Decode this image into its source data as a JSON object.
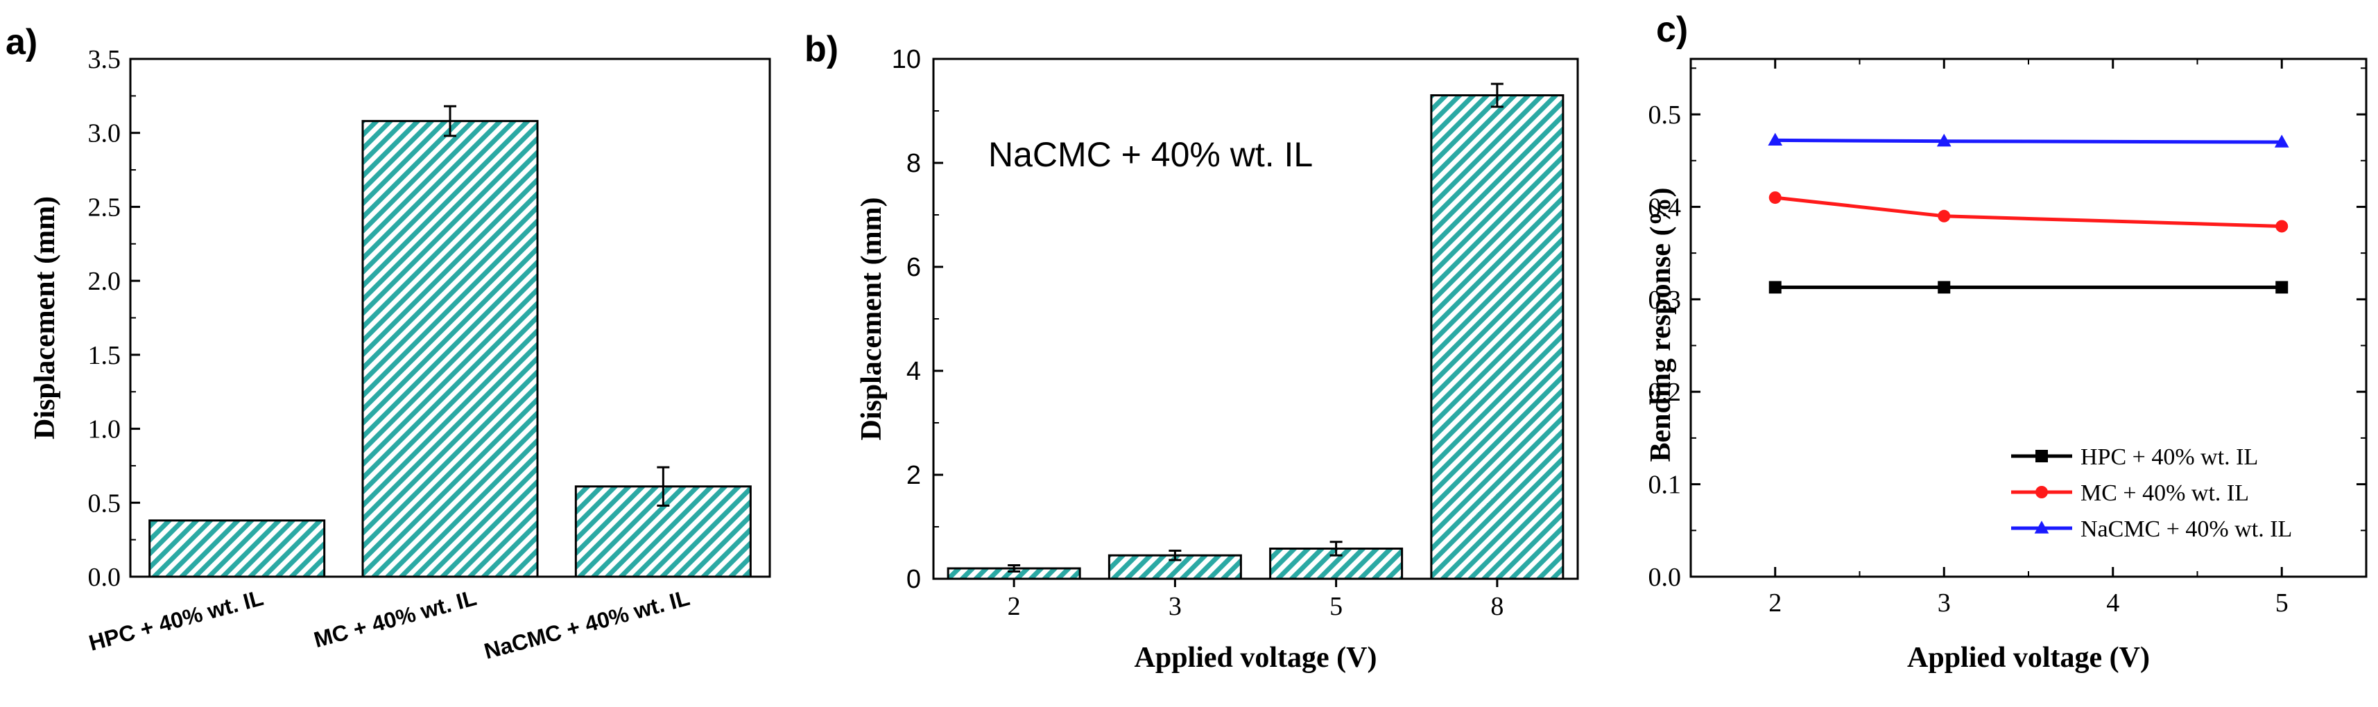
{
  "chart_data": [
    {
      "panel": "a)",
      "type": "bar",
      "categories": [
        "HPC + 40% wt. IL",
        "MC + 40% wt. IL",
        "NaCMC + 40% wt. IL"
      ],
      "values": [
        0.38,
        3.08,
        0.61
      ],
      "errors": [
        0.0,
        0.1,
        0.13
      ],
      "ylabel": "Displacement (mm)",
      "ylim": [
        0,
        3.5
      ],
      "yticks": [
        "0.0",
        "0.5",
        "1.0",
        "1.5",
        "2.0",
        "2.5",
        "3.0",
        "3.5"
      ],
      "bar_color": "#2ba9a4"
    },
    {
      "panel": "b)",
      "type": "bar",
      "categories": [
        "2",
        "3",
        "5",
        "8"
      ],
      "values": [
        0.2,
        0.45,
        0.58,
        9.3
      ],
      "errors": [
        0.06,
        0.09,
        0.13,
        0.22
      ],
      "xlabel": "Applied voltage (V)",
      "ylabel": "Displacement (mm)",
      "ylim": [
        0,
        10
      ],
      "yticks": [
        "0",
        "2",
        "4",
        "6",
        "8",
        "10"
      ],
      "annotation": "NaCMC + 40% wt. IL",
      "bar_color": "#2ba9a4"
    },
    {
      "panel": "c)",
      "type": "line",
      "xlabel": "Applied voltage (V)",
      "ylabel": "Bending response (%)",
      "xlim": [
        1.5,
        5.5
      ],
      "ylim": [
        0,
        0.56
      ],
      "xticks": [
        "2",
        "3",
        "4",
        "5"
      ],
      "yticks": [
        "0.0",
        "0.1",
        "0.2",
        "0.3",
        "0.4",
        "0.5"
      ],
      "legend_position": "bottom-right",
      "series": [
        {
          "name": "HPC + 40% wt. IL",
          "x": [
            2,
            3,
            5
          ],
          "y": [
            0.313,
            0.313,
            0.313
          ],
          "color": "#000000",
          "marker": "square"
        },
        {
          "name": "MC + 40% wt. IL",
          "x": [
            2,
            3,
            5
          ],
          "y": [
            0.41,
            0.39,
            0.379
          ],
          "color": "#ff1a1a",
          "marker": "circle"
        },
        {
          "name": "NaCMC + 40% wt. IL",
          "x": [
            2,
            3,
            5
          ],
          "y": [
            0.472,
            0.471,
            0.47
          ],
          "color": "#1a1aff",
          "marker": "triangle"
        }
      ]
    }
  ]
}
